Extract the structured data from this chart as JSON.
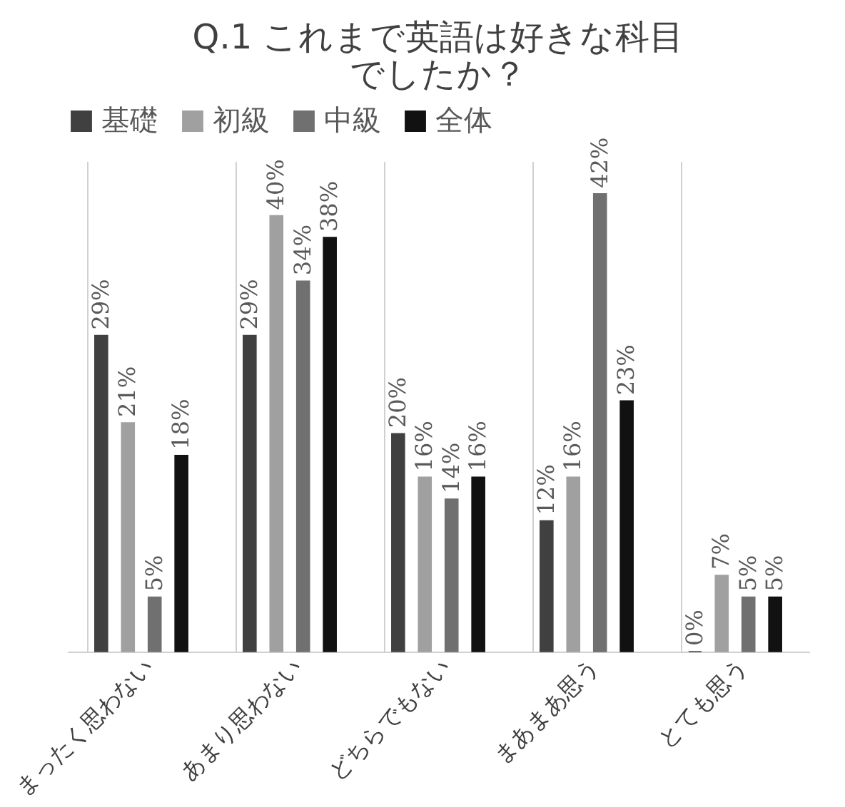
{
  "chart_data": {
    "type": "bar",
    "title": "Q.1 これまで英語は好きな科目でしたか？",
    "categories": [
      "まったく思わない",
      "あまり思わない",
      "どちらでもない",
      "まあまあ思う",
      "とても思う"
    ],
    "series": [
      {
        "name": "基礎",
        "color": "#404040",
        "values": [
          29,
          29,
          20,
          12,
          0
        ],
        "value_labels": [
          "29%",
          "29%",
          "20%",
          "12%",
          "0%"
        ]
      },
      {
        "name": "初級",
        "color": "#a0a0a0",
        "values": [
          21,
          40,
          16,
          16,
          7
        ],
        "value_labels": [
          "21%",
          "40%",
          "16%",
          "16%",
          "7%"
        ]
      },
      {
        "name": "中級",
        "color": "#707070",
        "values": [
          5,
          34,
          14,
          42,
          5
        ],
        "value_labels": [
          "5%",
          "34%",
          "14%",
          "42%",
          "5%"
        ]
      },
      {
        "name": "全体",
        "color": "#111111",
        "values": [
          18,
          38,
          16,
          23,
          5
        ],
        "value_labels": [
          "18%",
          "38%",
          "16%",
          "23%",
          "5%"
        ]
      }
    ],
    "grid": "x",
    "legend": "top",
    "tick_labels": "x"
  }
}
